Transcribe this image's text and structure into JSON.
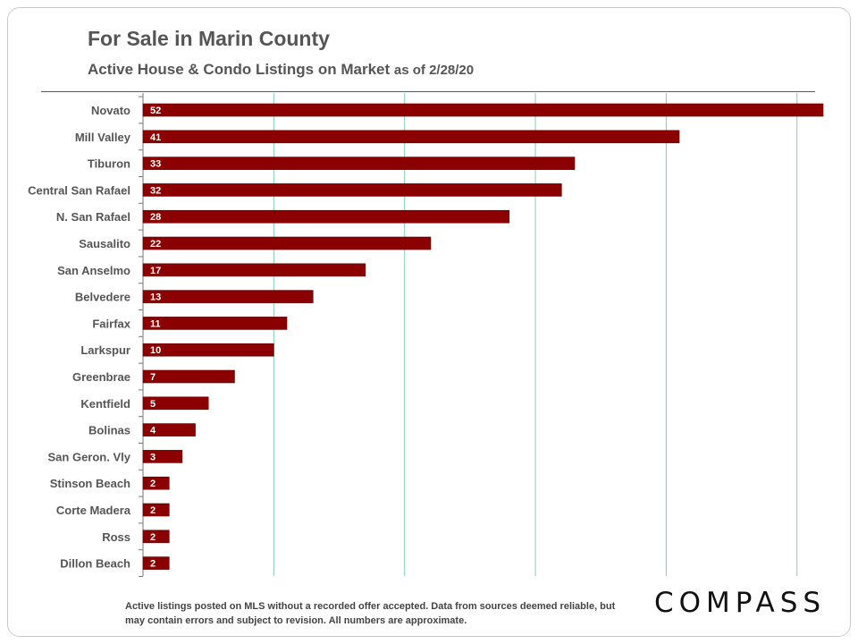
{
  "header": {
    "title": "For Sale in Marin County",
    "subtitle": "Active House & Condo Listings on Market",
    "as_of": "as of 2/28/20"
  },
  "footer": {
    "note": "Active listings posted on MLS without a recorded offer accepted. Data from sources deemed reliable, but may contain errors and subject to revision. All numbers are approximate.",
    "logo": "COMPASS"
  },
  "colors": {
    "bar": "#8b0000",
    "grid": "#7fcfb0",
    "text": "#555555"
  },
  "chart_data": {
    "type": "bar",
    "orientation": "horizontal",
    "title": "For Sale in Marin County",
    "subtitle": "Active House & Condo Listings on Market as of 2/28/20",
    "categories": [
      "Novato",
      "Mill Valley",
      "Tiburon",
      "Central San Rafael",
      "N. San Rafael",
      "Sausalito",
      "San Anselmo",
      "Belvedere",
      "Fairfax",
      "Larkspur",
      "Greenbrae",
      "Kentfield",
      "Bolinas",
      "San Geron. Vly",
      "Stinson Beach",
      "Corte Madera",
      "Ross",
      "Dillon Beach"
    ],
    "values": [
      52,
      41,
      33,
      32,
      28,
      22,
      17,
      13,
      11,
      10,
      7,
      5,
      4,
      3,
      2,
      2,
      2,
      2
    ],
    "xlim": [
      0,
      52
    ],
    "gridlines": [
      10,
      20,
      30,
      40,
      50
    ],
    "xlabel": "",
    "ylabel": "",
    "data_labels": true,
    "legend": "none"
  }
}
